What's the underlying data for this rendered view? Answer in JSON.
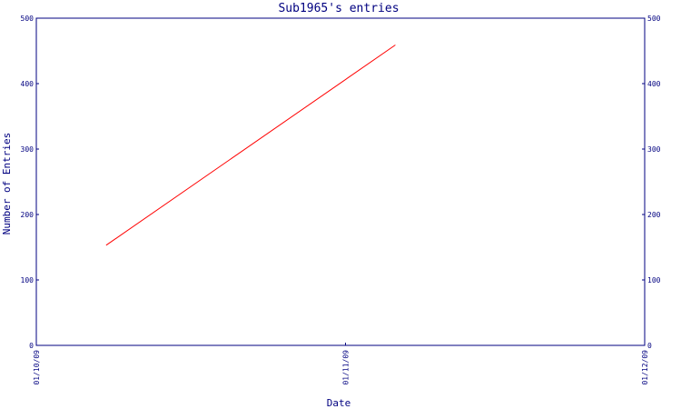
{
  "chart_data": {
    "type": "line",
    "title": "Sub1965's entries",
    "xlabel": "Date",
    "ylabel": "Number of Entries",
    "x_ticks": [
      "01/10/09",
      "01/11/09",
      "01/12/09"
    ],
    "y_ticks": [
      0,
      100,
      200,
      300,
      400,
      500
    ],
    "ylim": [
      0,
      500
    ],
    "xlim": [
      "2009-10-01",
      "2009-12-01"
    ],
    "grid": false,
    "series": [
      {
        "color": "#ff0000",
        "x": [
          "2009-10-08",
          "2009-11-06"
        ],
        "y": [
          153,
          459
        ]
      }
    ],
    "axis_color": "#000080"
  }
}
